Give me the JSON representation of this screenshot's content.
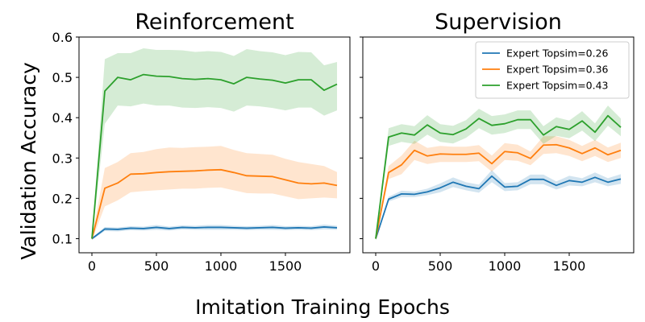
{
  "figure": {
    "xlabel": "Imitation Training Epochs",
    "ylabel": "Validation Accuracy"
  },
  "chart_data": [
    {
      "type": "line",
      "title": "Reinforcement",
      "xlabel": "Imitation Training Epochs",
      "ylabel": "Validation Accuracy",
      "xlim": [
        -100,
        2000
      ],
      "ylim": [
        0.065,
        0.6
      ],
      "xticks": [
        0,
        500,
        1000,
        1500
      ],
      "yticks": [
        0.1,
        0.2,
        0.3,
        0.4,
        0.5,
        0.6
      ],
      "ytick_labels": [
        "0.1",
        "0.2",
        "0.3",
        "0.4",
        "0.5",
        "0.6"
      ],
      "x": [
        0,
        100,
        200,
        300,
        400,
        500,
        600,
        700,
        800,
        900,
        1000,
        1100,
        1200,
        1300,
        1400,
        1500,
        1600,
        1700,
        1800,
        1900
      ],
      "series": [
        {
          "name": "Expert Topsim=0.26",
          "color": "#1f77b4",
          "values": [
            0.1,
            0.124,
            0.123,
            0.126,
            0.125,
            0.128,
            0.125,
            0.128,
            0.127,
            0.128,
            0.128,
            0.127,
            0.126,
            0.127,
            0.128,
            0.126,
            0.127,
            0.126,
            0.129,
            0.127
          ],
          "lower": [
            0.097,
            0.119,
            0.118,
            0.121,
            0.12,
            0.122,
            0.12,
            0.123,
            0.122,
            0.122,
            0.122,
            0.122,
            0.121,
            0.122,
            0.122,
            0.121,
            0.122,
            0.121,
            0.123,
            0.122
          ],
          "upper": [
            0.103,
            0.129,
            0.128,
            0.131,
            0.13,
            0.134,
            0.13,
            0.133,
            0.132,
            0.134,
            0.134,
            0.132,
            0.131,
            0.132,
            0.134,
            0.131,
            0.132,
            0.131,
            0.135,
            0.132
          ]
        },
        {
          "name": "Expert Topsim=0.36",
          "color": "#ff7f0e",
          "values": [
            0.1,
            0.225,
            0.238,
            0.26,
            0.261,
            0.264,
            0.266,
            0.267,
            0.268,
            0.27,
            0.271,
            0.264,
            0.256,
            0.255,
            0.254,
            0.246,
            0.238,
            0.236,
            0.238,
            0.232
          ],
          "lower": [
            0.096,
            0.18,
            0.195,
            0.215,
            0.218,
            0.22,
            0.222,
            0.224,
            0.224,
            0.226,
            0.227,
            0.22,
            0.213,
            0.212,
            0.212,
            0.205,
            0.198,
            0.2,
            0.202,
            0.2
          ],
          "upper": [
            0.104,
            0.275,
            0.29,
            0.312,
            0.315,
            0.322,
            0.326,
            0.325,
            0.327,
            0.328,
            0.33,
            0.32,
            0.312,
            0.31,
            0.308,
            0.298,
            0.29,
            0.285,
            0.28,
            0.265
          ]
        },
        {
          "name": "Expert Topsim=0.43",
          "color": "#2ca02c",
          "values": [
            0.1,
            0.466,
            0.5,
            0.494,
            0.507,
            0.503,
            0.502,
            0.497,
            0.495,
            0.497,
            0.494,
            0.484,
            0.5,
            0.496,
            0.493,
            0.486,
            0.494,
            0.494,
            0.468,
            0.483
          ],
          "lower": [
            0.095,
            0.385,
            0.43,
            0.428,
            0.435,
            0.43,
            0.43,
            0.425,
            0.424,
            0.426,
            0.424,
            0.415,
            0.43,
            0.428,
            0.424,
            0.418,
            0.425,
            0.425,
            0.405,
            0.418
          ],
          "upper": [
            0.105,
            0.545,
            0.56,
            0.56,
            0.572,
            0.568,
            0.568,
            0.567,
            0.563,
            0.565,
            0.563,
            0.553,
            0.57,
            0.565,
            0.562,
            0.555,
            0.563,
            0.562,
            0.53,
            0.538
          ]
        }
      ]
    },
    {
      "type": "line",
      "title": "Supervision",
      "xlabel": "Imitation Training Epochs",
      "ylabel": "Validation Accuracy",
      "xlim": [
        -100,
        2000
      ],
      "ylim": [
        0.065,
        0.6
      ],
      "xticks": [
        0,
        500,
        1000,
        1500
      ],
      "yticks": [
        0.1,
        0.2,
        0.3,
        0.4,
        0.5,
        0.6
      ],
      "legend": "top-right",
      "x": [
        0,
        100,
        200,
        300,
        400,
        500,
        600,
        700,
        800,
        900,
        1000,
        1100,
        1200,
        1300,
        1400,
        1500,
        1600,
        1700,
        1800,
        1900
      ],
      "series": [
        {
          "name": "Expert Topsim=0.26",
          "color": "#1f77b4",
          "values": [
            0.1,
            0.198,
            0.211,
            0.21,
            0.216,
            0.226,
            0.24,
            0.23,
            0.224,
            0.255,
            0.228,
            0.23,
            0.247,
            0.247,
            0.232,
            0.244,
            0.24,
            0.252,
            0.24,
            0.248
          ],
          "lower": [
            0.096,
            0.192,
            0.203,
            0.203,
            0.208,
            0.215,
            0.228,
            0.22,
            0.214,
            0.24,
            0.218,
            0.22,
            0.235,
            0.235,
            0.222,
            0.232,
            0.23,
            0.24,
            0.23,
            0.236
          ],
          "upper": [
            0.104,
            0.204,
            0.219,
            0.217,
            0.224,
            0.237,
            0.252,
            0.24,
            0.234,
            0.27,
            0.238,
            0.24,
            0.259,
            0.259,
            0.242,
            0.256,
            0.25,
            0.264,
            0.25,
            0.26
          ]
        },
        {
          "name": "Expert Topsim=0.36",
          "color": "#ff7f0e",
          "values": [
            0.1,
            0.264,
            0.283,
            0.319,
            0.305,
            0.31,
            0.309,
            0.309,
            0.312,
            0.286,
            0.316,
            0.313,
            0.299,
            0.332,
            0.333,
            0.325,
            0.311,
            0.325,
            0.308,
            0.319
          ],
          "lower": [
            0.096,
            0.248,
            0.26,
            0.295,
            0.285,
            0.29,
            0.29,
            0.29,
            0.292,
            0.266,
            0.295,
            0.293,
            0.282,
            0.31,
            0.312,
            0.305,
            0.292,
            0.305,
            0.29,
            0.3
          ],
          "upper": [
            0.104,
            0.28,
            0.306,
            0.343,
            0.325,
            0.33,
            0.328,
            0.328,
            0.332,
            0.306,
            0.337,
            0.333,
            0.316,
            0.354,
            0.354,
            0.345,
            0.33,
            0.345,
            0.326,
            0.338
          ]
        },
        {
          "name": "Expert Topsim=0.43",
          "color": "#2ca02c",
          "values": [
            0.1,
            0.352,
            0.362,
            0.357,
            0.382,
            0.362,
            0.358,
            0.372,
            0.398,
            0.381,
            0.385,
            0.395,
            0.395,
            0.357,
            0.378,
            0.371,
            0.392,
            0.364,
            0.405,
            0.376
          ],
          "lower": [
            0.096,
            0.33,
            0.34,
            0.335,
            0.358,
            0.34,
            0.336,
            0.35,
            0.374,
            0.358,
            0.362,
            0.372,
            0.372,
            0.335,
            0.355,
            0.349,
            0.368,
            0.342,
            0.38,
            0.354
          ],
          "upper": [
            0.104,
            0.374,
            0.384,
            0.379,
            0.406,
            0.384,
            0.38,
            0.394,
            0.422,
            0.404,
            0.408,
            0.418,
            0.418,
            0.379,
            0.401,
            0.393,
            0.416,
            0.386,
            0.43,
            0.398
          ]
        }
      ]
    }
  ]
}
